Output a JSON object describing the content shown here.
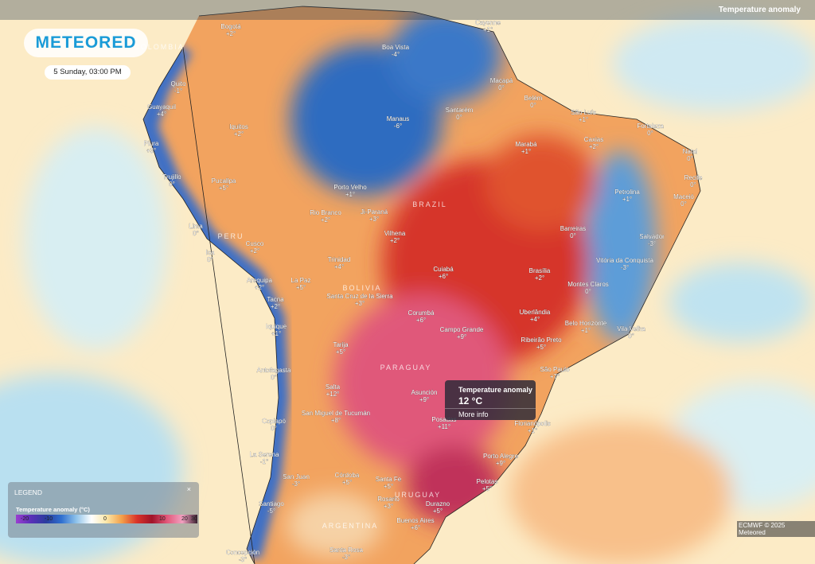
{
  "header": {
    "logo": "METEORED",
    "date": "5 Sunday, 03:00 PM",
    "layer": "Temperature anomaly"
  },
  "countries": [
    "COLOMBIA",
    "PERU",
    "BRAZIL",
    "BOLIVIA",
    "PARAGUAY",
    "URUGUAY",
    "ARGENTINA"
  ],
  "cities": [
    {
      "name": "Bogotá",
      "value": "+2°"
    },
    {
      "name": "Cayenne",
      "value": "+1°"
    },
    {
      "name": "Boa Vista",
      "value": "-4°"
    },
    {
      "name": "Quito",
      "value": "-1°"
    },
    {
      "name": "Guayaquil",
      "value": "+4°"
    },
    {
      "name": "Macapá",
      "value": "0°"
    },
    {
      "name": "Manaus",
      "value": "-6°"
    },
    {
      "name": "Santarém",
      "value": "0°"
    },
    {
      "name": "Belém",
      "value": "0°"
    },
    {
      "name": "São Luís",
      "value": "+1°"
    },
    {
      "name": "Fortaleza",
      "value": "0°"
    },
    {
      "name": "Iquitos",
      "value": "+2°"
    },
    {
      "name": "Caxias",
      "value": "+2°"
    },
    {
      "name": "Marabá",
      "value": "+1°"
    },
    {
      "name": "Natal",
      "value": "0°"
    },
    {
      "name": "Piura",
      "value": "+3°"
    },
    {
      "name": "Recife",
      "value": "0°"
    },
    {
      "name": "Trujillo",
      "value": "0°"
    },
    {
      "name": "Pucallpa",
      "value": "+5°"
    },
    {
      "name": "Porto Velho",
      "value": "+1°"
    },
    {
      "name": "Petrolina",
      "value": "+1°"
    },
    {
      "name": "Maceió",
      "value": "0°"
    },
    {
      "name": "Rio Branco",
      "value": "+2°"
    },
    {
      "name": "Ji-Paraná",
      "value": "+3°"
    },
    {
      "name": "Lima",
      "value": "0°"
    },
    {
      "name": "Barreiras",
      "value": "0°"
    },
    {
      "name": "Vilhena",
      "value": "+2°"
    },
    {
      "name": "Salvador",
      "value": "-3°"
    },
    {
      "name": "Cusco",
      "value": "+2°"
    },
    {
      "name": "Ica",
      "value": "0°"
    },
    {
      "name": "Trinidad",
      "value": "+4°"
    },
    {
      "name": "Vitória da Conquista",
      "value": "-3°"
    },
    {
      "name": "Cuiabá",
      "value": "+6°"
    },
    {
      "name": "Brasília",
      "value": "+2°"
    },
    {
      "name": "La Paz",
      "value": "+5°"
    },
    {
      "name": "Arequipa",
      "value": "+2°"
    },
    {
      "name": "Montes Claros",
      "value": "0°"
    },
    {
      "name": "Santa Cruz de la Sierra",
      "value": "+3°"
    },
    {
      "name": "Tacna",
      "value": "+2°"
    },
    {
      "name": "Corumbá",
      "value": "+6°"
    },
    {
      "name": "Uberlândia",
      "value": "+4°"
    },
    {
      "name": "Belo Horizonte",
      "value": "+1°"
    },
    {
      "name": "Vila Velha",
      "value": "0°"
    },
    {
      "name": "Campo Grande",
      "value": "+9°"
    },
    {
      "name": "Iquique",
      "value": "+1°"
    },
    {
      "name": "Ribeirão Preto",
      "value": "+5°"
    },
    {
      "name": "Tarija",
      "value": "+5°"
    },
    {
      "name": "São Paulo",
      "value": "+7°"
    },
    {
      "name": "Antofagasta",
      "value": "0°"
    },
    {
      "name": "Salta",
      "value": "+12°"
    },
    {
      "name": "Asunción",
      "value": "+9°"
    },
    {
      "name": "San Miguel de Tucumán",
      "value": "+8°"
    },
    {
      "name": "Posadas",
      "value": "+11°"
    },
    {
      "name": "Florianópolis",
      "value": "+1°"
    },
    {
      "name": "Copiapó",
      "value": "0°"
    },
    {
      "name": "Porto Alegre",
      "value": "+9°"
    },
    {
      "name": "La Serena",
      "value": "-1°"
    },
    {
      "name": "Córdoba",
      "value": "+5°"
    },
    {
      "name": "San Juan",
      "value": "-3°"
    },
    {
      "name": "Santa Fe",
      "value": "+5°"
    },
    {
      "name": "Pelotas",
      "value": "+5°"
    },
    {
      "name": "Rosario",
      "value": "+3°"
    },
    {
      "name": "Durazno",
      "value": "+5°"
    },
    {
      "name": "Santiago",
      "value": "-5°"
    },
    {
      "name": "Buenos Aires",
      "value": "+6°"
    },
    {
      "name": "Concepción",
      "value": "-3°"
    },
    {
      "name": "Santa Rosa",
      "value": "-3°"
    }
  ],
  "tooltip": {
    "title": "Temperature anomaly",
    "value": "12 °C",
    "link": "More info"
  },
  "legend": {
    "title": "LEGEND",
    "close": "×",
    "subtitle": "Temperature anomaly (°C)",
    "ticks": [
      "-20",
      "-10",
      "0",
      "10",
      "20",
      "30"
    ]
  },
  "credit": "ECMWF © 2025 Meteored"
}
